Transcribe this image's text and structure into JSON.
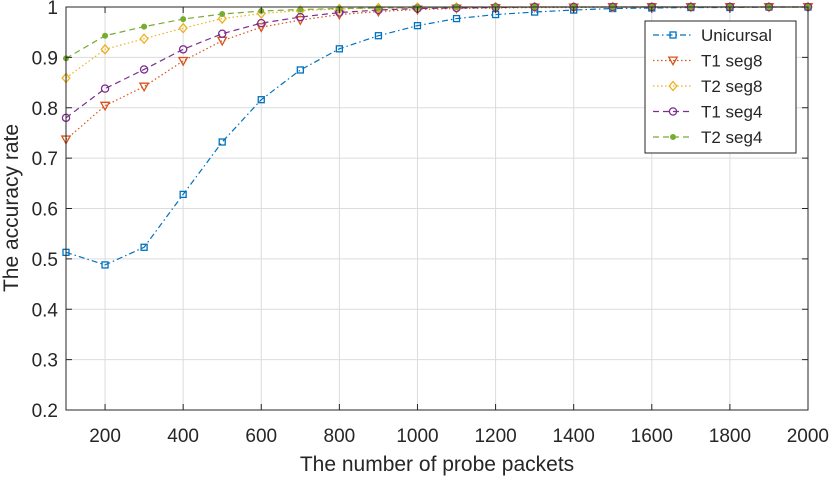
{
  "chart_data": {
    "type": "line",
    "xlabel": "The number of probe packets",
    "ylabel": "The accuracy rate",
    "xlim": [
      100,
      2000
    ],
    "ylim": [
      0.2,
      1.0
    ],
    "grid": true,
    "legend_position": "top-right",
    "x": [
      100,
      200,
      300,
      400,
      500,
      600,
      700,
      800,
      900,
      1000,
      1100,
      1200,
      1300,
      1400,
      1500,
      1600,
      1700,
      1800,
      1900,
      2000
    ],
    "x_ticks": [
      200,
      400,
      600,
      800,
      1000,
      1200,
      1400,
      1600,
      1800,
      2000
    ],
    "x_tick_labels": [
      "200",
      "400",
      "600",
      "800",
      "1000",
      "1200",
      "1400",
      "1600",
      "1800",
      "2000"
    ],
    "y_ticks": [
      0.2,
      0.3,
      0.4,
      0.5,
      0.6,
      0.7,
      0.8,
      0.9,
      1.0
    ],
    "y_tick_labels": [
      "0.2",
      "0.3",
      "0.4",
      "0.5",
      "0.6",
      "0.7",
      "0.8",
      "0.9",
      "1"
    ],
    "series": [
      {
        "name": "Unicursal",
        "color": "#0072BD",
        "dash": "dashdot",
        "marker": "square",
        "values": [
          0.513,
          0.488,
          0.523,
          0.628,
          0.732,
          0.816,
          0.875,
          0.917,
          0.943,
          0.963,
          0.977,
          0.985,
          0.99,
          0.994,
          0.997,
          0.998,
          0.999,
          0.999,
          1.0,
          1.0
        ]
      },
      {
        "name": "T1 seg8",
        "color": "#D95319",
        "dash": "dotted",
        "marker": "triangle-down",
        "values": [
          0.737,
          0.804,
          0.842,
          0.893,
          0.933,
          0.96,
          0.974,
          0.985,
          0.991,
          0.995,
          0.997,
          0.998,
          0.999,
          0.999,
          1.0,
          1.0,
          1.0,
          1.0,
          1.0,
          1.0
        ]
      },
      {
        "name": "T2 seg8",
        "color": "#EDB120",
        "dash": "dotted",
        "marker": "diamond",
        "values": [
          0.859,
          0.916,
          0.937,
          0.958,
          0.977,
          0.987,
          0.993,
          0.996,
          0.998,
          0.999,
          0.999,
          1.0,
          1.0,
          1.0,
          1.0,
          1.0,
          1.0,
          1.0,
          1.0,
          1.0
        ]
      },
      {
        "name": "T1 seg4",
        "color": "#7E2F8E",
        "dash": "dashed",
        "marker": "circle",
        "values": [
          0.78,
          0.838,
          0.876,
          0.916,
          0.947,
          0.968,
          0.98,
          0.989,
          0.994,
          0.997,
          0.998,
          0.999,
          1.0,
          1.0,
          1.0,
          1.0,
          1.0,
          1.0,
          1.0,
          1.0
        ]
      },
      {
        "name": "T2 seg4",
        "color": "#77AC30",
        "dash": "dashed",
        "marker": "dot",
        "values": [
          0.898,
          0.943,
          0.961,
          0.976,
          0.986,
          0.992,
          0.995,
          0.997,
          0.998,
          0.999,
          1.0,
          1.0,
          1.0,
          1.0,
          1.0,
          1.0,
          1.0,
          1.0,
          1.0,
          1.0
        ]
      }
    ]
  }
}
